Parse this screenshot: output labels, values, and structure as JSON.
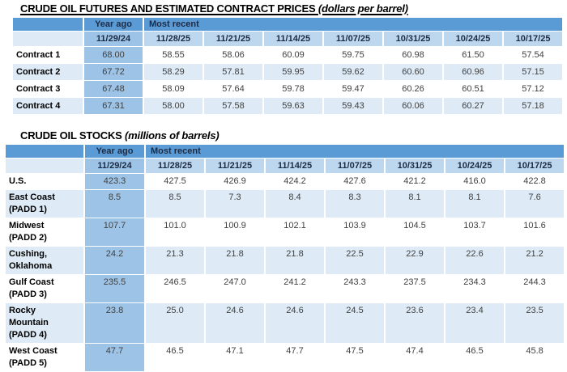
{
  "colors": {
    "band_blue": "#5b9bd5",
    "year_ago_col_blue": "#9dc3e6",
    "date_row_blue": "#bdd7ee",
    "stripe_blue": "#deebf7",
    "header_text": "#1c2b45",
    "number_text": "#404040",
    "label_text": "#000000",
    "page_bg": "#ffffff"
  },
  "tables": [
    {
      "name": "crude-oil-futures",
      "title": "CRUDE OIL FUTURES AND ESTIMATED CONTRACT PRICES",
      "title_note": "(dollars per barrel)",
      "year_ago_label": "Year ago",
      "most_recent_label": "Most recent",
      "date_headers": [
        "11/29/24",
        "11/28/25",
        "11/21/25",
        "11/14/25",
        "11/07/25",
        "10/31/25",
        "10/24/25",
        "10/17/25"
      ],
      "rows": [
        {
          "label_lines": [
            "Contract 1"
          ],
          "values": [
            "68.00",
            "58.55",
            "58.06",
            "60.09",
            "59.75",
            "60.98",
            "61.50",
            "57.54"
          ]
        },
        {
          "label_lines": [
            "Contract 2"
          ],
          "values": [
            "67.72",
            "58.29",
            "57.81",
            "59.95",
            "59.62",
            "60.60",
            "60.96",
            "57.15"
          ]
        },
        {
          "label_lines": [
            "Contract 3"
          ],
          "values": [
            "67.48",
            "58.09",
            "57.64",
            "59.78",
            "59.47",
            "60.26",
            "60.51",
            "57.12"
          ]
        },
        {
          "label_lines": [
            "Contract 4"
          ],
          "values": [
            "67.31",
            "58.00",
            "57.58",
            "59.63",
            "59.43",
            "60.06",
            "60.27",
            "57.18"
          ]
        }
      ]
    },
    {
      "name": "crude-oil-stocks",
      "title": "CRUDE OIL STOCKS",
      "title_note": "(millions of barrels)",
      "year_ago_label": "Year ago",
      "most_recent_label": "Most recent",
      "date_headers": [
        "11/29/24",
        "11/28/25",
        "11/21/25",
        "11/14/25",
        "11/07/25",
        "10/31/25",
        "10/24/25",
        "10/17/25"
      ],
      "rows": [
        {
          "label_lines": [
            "U.S."
          ],
          "values": [
            "423.3",
            "427.5",
            "426.9",
            "424.2",
            "427.6",
            "421.2",
            "416.0",
            "422.8"
          ]
        },
        {
          "label_lines": [
            "East Coast",
            "(PADD 1)"
          ],
          "values": [
            "8.5",
            "8.5",
            "7.3",
            "8.4",
            "8.3",
            "8.1",
            "8.1",
            "7.6"
          ]
        },
        {
          "label_lines": [
            "Midwest",
            "(PADD 2)"
          ],
          "values": [
            "107.7",
            "101.0",
            "100.9",
            "102.1",
            "103.9",
            "104.5",
            "103.7",
            "101.6"
          ]
        },
        {
          "label_lines": [
            "Cushing,",
            "Oklahoma"
          ],
          "values": [
            "24.2",
            "21.3",
            "21.8",
            "21.8",
            "22.5",
            "22.9",
            "22.6",
            "21.2"
          ]
        },
        {
          "label_lines": [
            "Gulf Coast",
            "(PADD 3)"
          ],
          "values": [
            "235.5",
            "246.5",
            "247.0",
            "241.2",
            "243.3",
            "237.5",
            "234.3",
            "244.3"
          ]
        },
        {
          "label_lines": [
            "Rocky",
            "Mountain",
            "(PADD 4)"
          ],
          "values": [
            "23.8",
            "25.0",
            "24.6",
            "24.6",
            "24.5",
            "23.6",
            "23.4",
            "23.5"
          ]
        },
        {
          "label_lines": [
            "West Coast",
            "(PADD 5)"
          ],
          "values": [
            "47.7",
            "46.5",
            "47.1",
            "47.7",
            "47.5",
            "47.4",
            "46.5",
            "45.8"
          ]
        }
      ]
    }
  ]
}
